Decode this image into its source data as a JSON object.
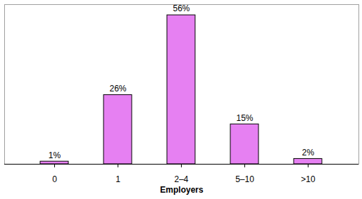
{
  "chart_data": {
    "type": "bar",
    "x_label": "Employers",
    "categories": [
      "0",
      "1",
      "2–4",
      "5–10",
      ">10"
    ],
    "values": [
      1,
      26,
      56,
      15,
      2
    ],
    "value_labels": [
      "1%",
      "26%",
      "56%",
      "15%",
      "2%"
    ],
    "color": "#e680f2",
    "ylim": [
      0,
      60
    ],
    "grid": false,
    "data_labels": true,
    "tick_labels": "x"
  }
}
